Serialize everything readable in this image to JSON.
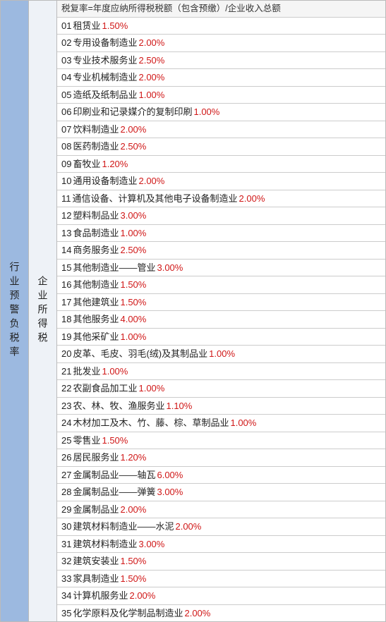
{
  "leftHeader": "行业预警负税率",
  "midHeader": "企业所得税",
  "formula": "税复率=年度应纳所得税税额（包含预缴）/企业收入总额",
  "rows": [
    {
      "idx": "01",
      "name": "租赁业",
      "rate": "1.50%"
    },
    {
      "idx": "02",
      "name": "专用设备制造业",
      "rate": "2.00%"
    },
    {
      "idx": "03",
      "name": "专业技术服务业",
      "rate": "2.50%"
    },
    {
      "idx": "04",
      "name": "专业机械制造业",
      "rate": "2.00%"
    },
    {
      "idx": "05",
      "name": "造纸及纸制品业",
      "rate": "1.00%"
    },
    {
      "idx": "06",
      "name": "印刷业和记录媒介的复制印刷",
      "rate": "1.00%"
    },
    {
      "idx": "07",
      "name": "饮料制造业",
      "rate": "2.00%"
    },
    {
      "idx": "08",
      "name": "医药制造业",
      "rate": "2.50%"
    },
    {
      "idx": "09",
      "name": "畜牧业",
      "rate": "1.20%"
    },
    {
      "idx": "10",
      "name": "通用设备制造业",
      "rate": "2.00%"
    },
    {
      "idx": "11",
      "name": "通信设备、计算机及其他电子设备制造业",
      "rate": "2.00%"
    },
    {
      "idx": "12",
      "name": "塑料制品业",
      "rate": "3.00%"
    },
    {
      "idx": "13",
      "name": "食品制造业",
      "rate": "1.00%"
    },
    {
      "idx": "14",
      "name": "商务服务业",
      "rate": "2.50%"
    },
    {
      "idx": "15",
      "name": "其他制造业——管业",
      "rate": "3.00%"
    },
    {
      "idx": "16",
      "name": "其他制造业",
      "rate": "1.50%"
    },
    {
      "idx": "17",
      "name": "其他建筑业",
      "rate": "1.50%"
    },
    {
      "idx": "18",
      "name": "其他服务业",
      "rate": "4.00%"
    },
    {
      "idx": "19",
      "name": "其他采矿业",
      "rate": "1.00%"
    },
    {
      "idx": "20",
      "name": "皮革、毛皮、羽毛(绒)及其制品业",
      "rate": "1.00%"
    },
    {
      "idx": "21",
      "name": "批发业",
      "rate": "1.00%"
    },
    {
      "idx": "22",
      "name": "农副食品加工业",
      "rate": "1.00%"
    },
    {
      "idx": "23",
      "name": "农、林、牧、渔服务业",
      "rate": "1.10%"
    },
    {
      "idx": "24",
      "name": "木材加工及木、竹、藤、棕、草制品业",
      "rate": "1.00%"
    },
    {
      "idx": "25",
      "name": "零售业",
      "rate": "1.50%"
    },
    {
      "idx": "26",
      "name": "居民服务业",
      "rate": "1.20%"
    },
    {
      "idx": "27",
      "name": "金属制品业——轴瓦",
      "rate": "6.00%"
    },
    {
      "idx": "28",
      "name": "金属制品业——弹簧",
      "rate": "3.00%"
    },
    {
      "idx": "29",
      "name": "金属制品业",
      "rate": "2.00%"
    },
    {
      "idx": "30",
      "name": "建筑材料制造业——水泥",
      "rate": "2.00%"
    },
    {
      "idx": "31",
      "name": "建筑材料制造业",
      "rate": "3.00%"
    },
    {
      "idx": "32",
      "name": "建筑安装业",
      "rate": "1.50%"
    },
    {
      "idx": "33",
      "name": "家具制造业",
      "rate": "1.50%"
    },
    {
      "idx": "34",
      "name": "计算机服务业",
      "rate": "2.00%"
    },
    {
      "idx": "35",
      "name": "化学原料及化学制品制造业",
      "rate": "2.00%"
    }
  ]
}
